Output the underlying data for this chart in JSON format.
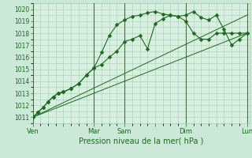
{
  "bg_color": "#cce8d8",
  "plot_bg_color": "#d8f0e0",
  "grid_color": "#a8c8b8",
  "line_color": "#1a6b1a",
  "text_color": "#1a6b1a",
  "xlabel": "Pression niveau de la mer( hPa )",
  "ylim": [
    1010.5,
    1020.5
  ],
  "yticks": [
    1011,
    1012,
    1013,
    1014,
    1015,
    1016,
    1017,
    1018,
    1019,
    1020
  ],
  "xlim": [
    0,
    170
  ],
  "xtick_labels": [
    "Ven",
    "",
    "Mar",
    "Sam",
    "",
    "Dim",
    "",
    "Lun"
  ],
  "xtick_positions": [
    0,
    24,
    48,
    72,
    96,
    120,
    144,
    168
  ],
  "vlines": [
    0,
    48,
    72,
    120,
    168
  ],
  "series1_x": [
    0,
    4,
    8,
    12,
    16,
    20,
    24,
    30,
    36,
    42,
    48,
    54,
    60,
    66,
    72,
    78,
    84,
    90,
    96,
    102,
    108,
    114,
    120,
    126,
    132,
    138,
    144,
    150,
    156,
    162,
    168
  ],
  "series1_y": [
    1011.0,
    1011.4,
    1011.8,
    1012.3,
    1012.7,
    1013.0,
    1013.1,
    1013.4,
    1013.8,
    1014.5,
    1015.1,
    1015.4,
    1016.0,
    1016.5,
    1017.3,
    1017.5,
    1017.8,
    1016.7,
    1018.8,
    1019.2,
    1019.5,
    1019.4,
    1019.5,
    1019.8,
    1019.3,
    1019.1,
    1019.5,
    1018.3,
    1017.0,
    1017.5,
    1018.0
  ],
  "series2_x": [
    0,
    4,
    8,
    12,
    16,
    20,
    24,
    30,
    36,
    42,
    48,
    54,
    60,
    66,
    72,
    78,
    84,
    90,
    96,
    102,
    108,
    114,
    120,
    126,
    132,
    138,
    144,
    150,
    156,
    162,
    168
  ],
  "series2_y": [
    1011.0,
    1011.4,
    1011.8,
    1012.3,
    1012.7,
    1013.0,
    1013.1,
    1013.4,
    1013.8,
    1014.5,
    1015.1,
    1016.4,
    1017.8,
    1018.7,
    1019.1,
    1019.4,
    1019.5,
    1019.7,
    1019.8,
    1019.6,
    1019.5,
    1019.4,
    1019.0,
    1018.0,
    1017.5,
    1017.5,
    1018.0,
    1018.0,
    1018.0,
    1018.0,
    1018.0
  ],
  "line3_x": [
    0,
    168
  ],
  "line3_y": [
    1011.0,
    1018.0
  ],
  "line4_x": [
    0,
    168
  ],
  "line4_y": [
    1011.0,
    1019.5
  ]
}
